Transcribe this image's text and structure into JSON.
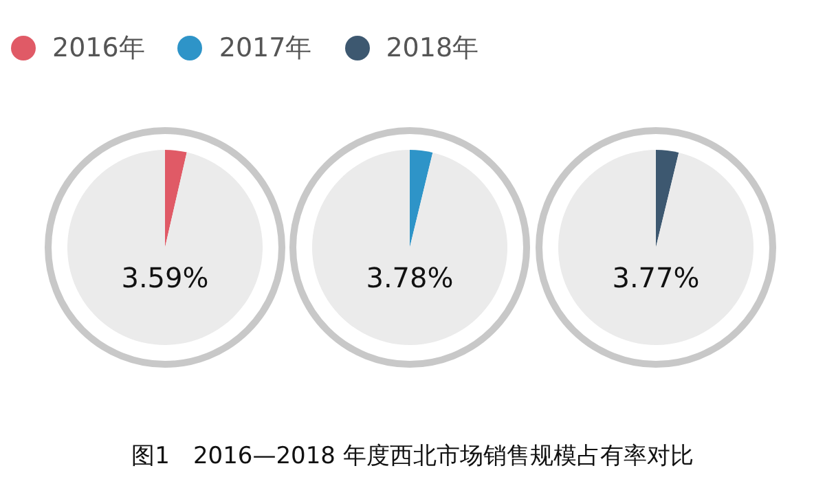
{
  "chart_data": [
    {
      "type": "pie",
      "categories": [
        "2016年",
        null
      ],
      "values": [
        3.59,
        96.41
      ],
      "colors": [
        "#e05a66",
        "#ebebeb"
      ],
      "legend": "top left",
      "annotations": [
        "3.59%",
        "图1　2016—2018 年度西北市场销售规模占有率对比"
      ]
    },
    {
      "type": "pie",
      "categories": [
        "2017年",
        null
      ],
      "values": [
        3.78,
        96.22
      ],
      "colors": [
        "#2e94c8",
        "#ebebeb"
      ],
      "legend": "top left",
      "annotations": [
        "3.78%"
      ]
    },
    {
      "type": "pie",
      "categories": [
        "2018年",
        null
      ],
      "values": [
        3.77,
        96.23
      ],
      "colors": [
        "#3d5870",
        "#ebebeb"
      ],
      "legend": "top left",
      "annotations": [
        "3.77%"
      ]
    }
  ]
}
